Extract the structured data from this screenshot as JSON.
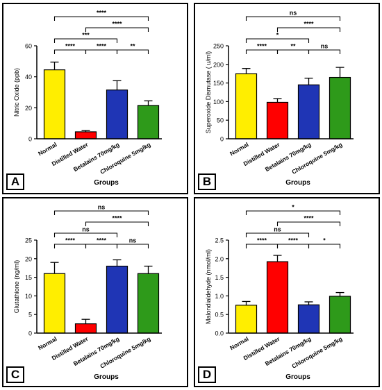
{
  "colors": {
    "normal": "#FFEE00",
    "distilled_water": "#FF0000",
    "betalains": "#1F35B5",
    "chloroquine": "#2E9A1A",
    "bracket": "#000000"
  },
  "chart_data": [
    {
      "panel": "A",
      "type": "bar",
      "categories": [
        "Normal",
        "Distilled Water",
        "Betalains 70mg/kg",
        "Chloroquine 5mg/kg"
      ],
      "values": [
        44.5,
        4.5,
        31.5,
        21.5
      ],
      "errors": [
        5,
        0.8,
        6,
        3
      ],
      "xlabel": "Groups",
      "ylabel": "Nitric Oxide (ppb)",
      "ylim": [
        0,
        60
      ],
      "yticks": [
        "0",
        "20",
        "40",
        "60"
      ],
      "grid": false,
      "comparisons": [
        {
          "from": 0,
          "to": 1,
          "label": "****"
        },
        {
          "from": 1,
          "to": 2,
          "label": "****"
        },
        {
          "from": 2,
          "to": 3,
          "label": "**"
        },
        {
          "from": 0,
          "to": 2,
          "label": "***"
        },
        {
          "from": 1,
          "to": 3,
          "label": "****"
        },
        {
          "from": 0,
          "to": 3,
          "label": "****"
        }
      ]
    },
    {
      "panel": "B",
      "type": "bar",
      "categories": [
        "Normal",
        "Distilled Water",
        "Betalains 70mg/kg",
        "Chloroquine 5mg/kg"
      ],
      "values": [
        175,
        98,
        145,
        165
      ],
      "errors": [
        14,
        10,
        18,
        27
      ],
      "xlabel": "Groups",
      "ylabel": "Superoxide Dismutase ( u/ml)",
      "ylim": [
        0,
        250
      ],
      "yticks": [
        "0",
        "50",
        "100",
        "150",
        "200",
        "250"
      ],
      "grid": false,
      "comparisons": [
        {
          "from": 0,
          "to": 1,
          "label": "****"
        },
        {
          "from": 1,
          "to": 2,
          "label": "**"
        },
        {
          "from": 2,
          "to": 3,
          "label": "ns"
        },
        {
          "from": 0,
          "to": 2,
          "label": "*"
        },
        {
          "from": 1,
          "to": 3,
          "label": "****"
        },
        {
          "from": 0,
          "to": 3,
          "label": "ns"
        }
      ]
    },
    {
      "panel": "C",
      "type": "bar",
      "categories": [
        "Normal",
        "Distilled Water",
        "Betalains 70mg/kg",
        "Chloroquine 5mg/kg"
      ],
      "values": [
        16,
        2.5,
        18,
        16
      ],
      "errors": [
        3,
        1.2,
        1.7,
        2
      ],
      "xlabel": "Groups",
      "ylabel": "Glutathione (ng/ml)",
      "ylim": [
        0,
        25
      ],
      "yticks": [
        "0",
        "5",
        "10",
        "15",
        "20",
        "25"
      ],
      "grid": false,
      "comparisons": [
        {
          "from": 0,
          "to": 1,
          "label": "****"
        },
        {
          "from": 1,
          "to": 2,
          "label": "****"
        },
        {
          "from": 2,
          "to": 3,
          "label": "ns"
        },
        {
          "from": 0,
          "to": 2,
          "label": "ns"
        },
        {
          "from": 1,
          "to": 3,
          "label": "****"
        },
        {
          "from": 0,
          "to": 3,
          "label": "ns"
        }
      ]
    },
    {
      "panel": "D",
      "type": "bar",
      "categories": [
        "Normal",
        "Distilled Water",
        "Betalains 70mg/kg",
        "Chloroquine 5mg/kg"
      ],
      "values": [
        0.75,
        1.92,
        0.76,
        0.99
      ],
      "errors": [
        0.1,
        0.17,
        0.08,
        0.1
      ],
      "xlabel": "Groups",
      "ylabel": "Malondialdehyde (nmol/ml)",
      "ylim": [
        0,
        2.5
      ],
      "yticks": [
        "0.0",
        "0.5",
        "1.0",
        "1.5",
        "2.0",
        "2.5"
      ],
      "grid": false,
      "comparisons": [
        {
          "from": 0,
          "to": 1,
          "label": "****"
        },
        {
          "from": 1,
          "to": 2,
          "label": "****"
        },
        {
          "from": 2,
          "to": 3,
          "label": "*"
        },
        {
          "from": 0,
          "to": 2,
          "label": "ns"
        },
        {
          "from": 1,
          "to": 3,
          "label": "****"
        },
        {
          "from": 0,
          "to": 3,
          "label": "*"
        }
      ]
    }
  ]
}
